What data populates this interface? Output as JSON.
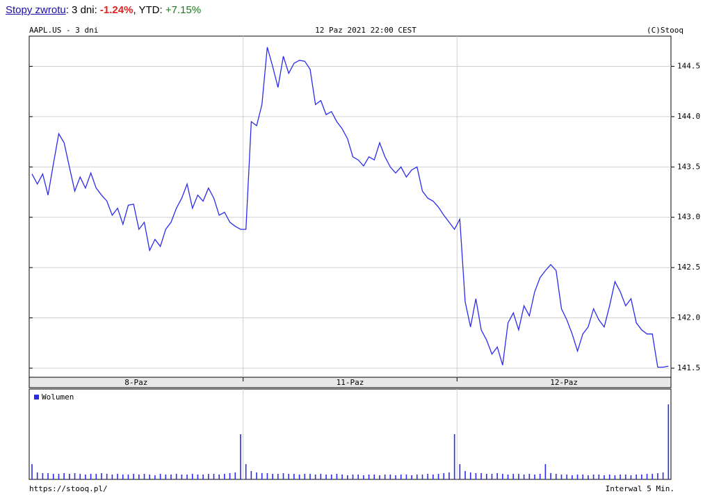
{
  "header": {
    "link": "Stopy zwrotu",
    "text": ": 3 dni: ",
    "change": "-1.24%",
    "ytd_text": ", YTD: ",
    "ytd": "+7.15%"
  },
  "chart_data": {
    "type": "line",
    "symbol": "AAPL.US - 3 dni",
    "date": "12 Paz 2021 22:00 CEST",
    "copyright": "(C)Stooq",
    "color": "#2a2aee",
    "grid": true,
    "ylim": [
      141.41,
      144.8
    ],
    "yticks": [
      {
        "value": 141.5,
        "label": "141.5"
      },
      {
        "value": 142,
        "label": "142.0"
      },
      {
        "value": 142.5,
        "label": "142.5"
      },
      {
        "value": 143,
        "label": "143.0"
      },
      {
        "value": 143.5,
        "label": "143.5"
      },
      {
        "value": 144,
        "label": "144.0"
      },
      {
        "value": 144.5,
        "label": "144.5"
      }
    ],
    "days": [
      {
        "label": "8-Paz",
        "values": [
          143.43,
          143.33,
          143.43,
          143.22,
          143.53,
          143.83,
          143.74,
          143.5,
          143.26,
          143.4,
          143.29,
          143.44,
          143.29,
          143.22,
          143.16,
          143.02,
          143.09,
          142.93,
          143.12,
          143.13,
          142.88,
          142.95,
          142.67,
          142.78,
          142.71,
          142.88,
          142.95,
          143.09,
          143.19,
          143.33,
          143.09,
          143.22,
          143.16,
          143.29,
          143.19,
          143.02,
          143.05,
          142.95,
          142.91,
          142.88
        ],
        "volume": [
          22,
          10,
          9,
          9,
          8,
          8,
          9,
          8,
          9,
          8,
          7,
          8,
          8,
          9,
          8,
          7,
          8,
          7,
          7,
          8,
          7,
          8,
          7,
          6,
          8,
          7,
          7,
          8,
          7,
          7,
          8,
          7,
          7,
          8,
          8,
          7,
          8,
          9,
          10,
          65
        ]
      },
      {
        "label": "11-Paz",
        "values": [
          142.88,
          143.95,
          143.91,
          144.12,
          144.69,
          144.5,
          144.29,
          144.6,
          144.43,
          144.53,
          144.56,
          144.55,
          144.47,
          144.12,
          144.16,
          144.02,
          144.05,
          143.95,
          143.88,
          143.78,
          143.6,
          143.57,
          143.51,
          143.6,
          143.57,
          143.74,
          143.6,
          143.5,
          143.44,
          143.5,
          143.4,
          143.47,
          143.5,
          143.26,
          143.19,
          143.16,
          143.1,
          143.02,
          142.95,
          142.88
        ],
        "volume": [
          22,
          12,
          10,
          9,
          9,
          8,
          8,
          9,
          8,
          8,
          7,
          8,
          8,
          7,
          8,
          7,
          7,
          8,
          7,
          6,
          7,
          7,
          6,
          7,
          7,
          6,
          7,
          7,
          6,
          7,
          7,
          6,
          7,
          7,
          8,
          7,
          8,
          9,
          10,
          65
        ]
      },
      {
        "label": "12-Paz",
        "values": [
          142.98,
          142.16,
          141.91,
          142.19,
          141.88,
          141.78,
          141.64,
          141.71,
          141.53,
          141.95,
          142.05,
          141.88,
          142.12,
          142.02,
          142.26,
          142.4,
          142.47,
          142.53,
          142.47,
          142.09,
          141.98,
          141.84,
          141.67,
          141.84,
          141.91,
          142.09,
          141.98,
          141.91,
          142.12,
          142.36,
          142.26,
          142.12,
          142.19,
          141.95,
          141.88,
          141.84,
          141.84,
          141.51,
          141.51,
          141.52
        ],
        "volume": [
          22,
          12,
          10,
          9,
          9,
          8,
          8,
          9,
          8,
          7,
          8,
          8,
          7,
          8,
          7,
          8,
          22,
          9,
          8,
          7,
          7,
          6,
          7,
          7,
          6,
          7,
          7,
          6,
          7,
          6,
          7,
          7,
          6,
          7,
          7,
          8,
          8,
          9,
          10,
          108
        ]
      }
    ],
    "volume_legend": "Wolumen",
    "volume_ylim": [
      0,
      130
    ],
    "source": "https://stooq.pl/",
    "interval": "Interwal 5 Min."
  }
}
